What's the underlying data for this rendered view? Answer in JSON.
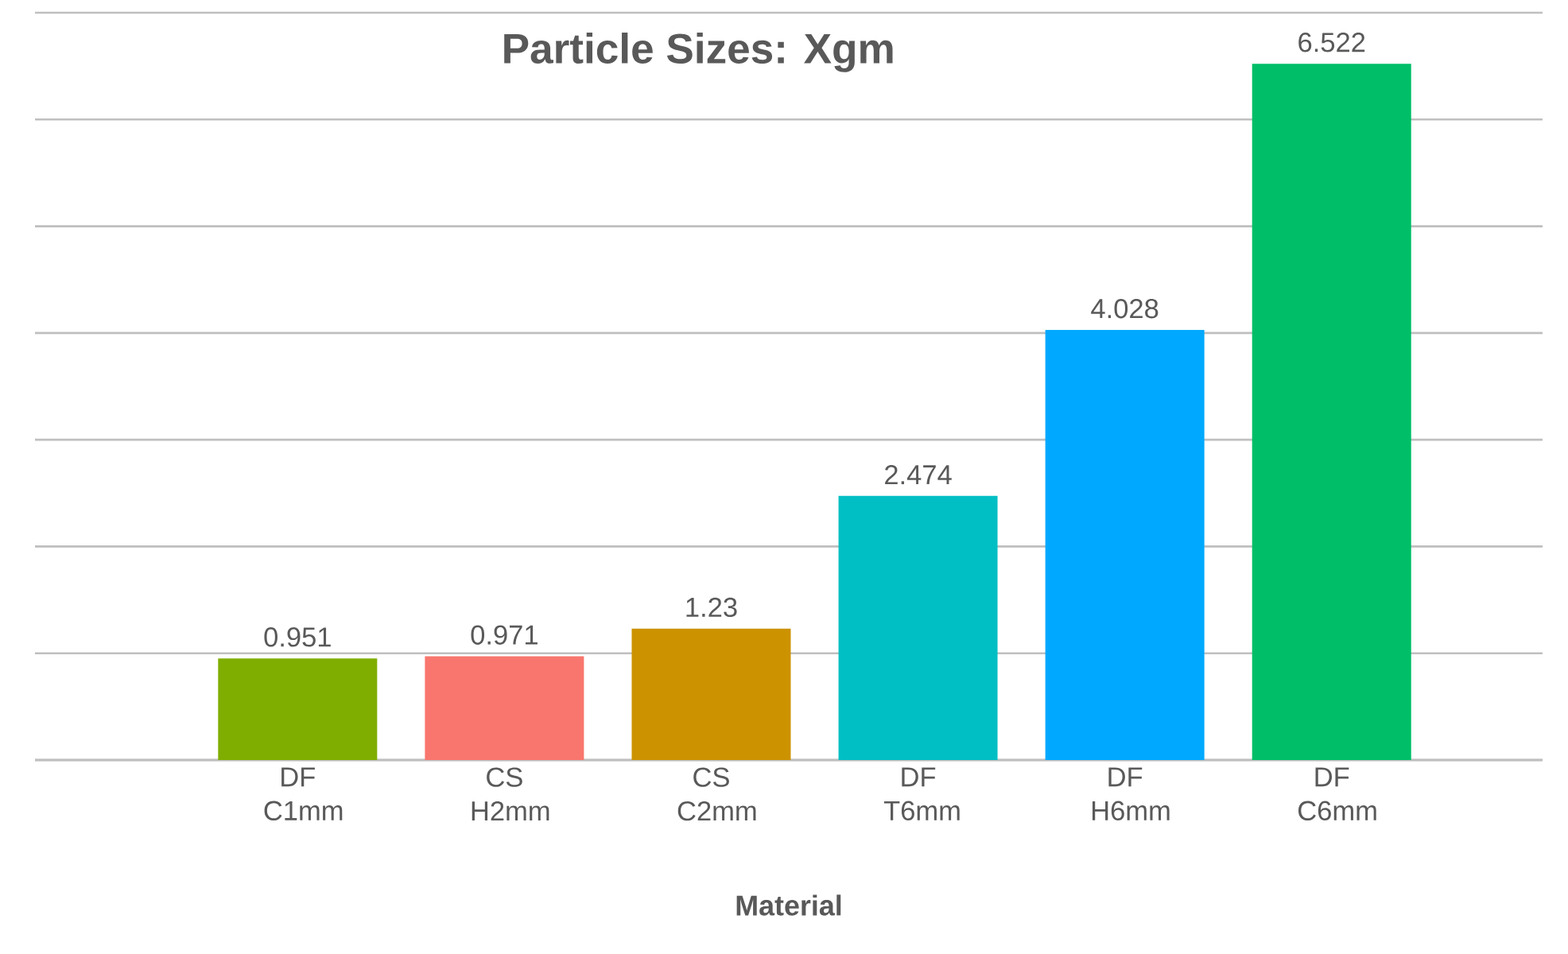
{
  "chart_data": {
    "type": "bar",
    "title": "Particle Sizes: Xgm",
    "xlabel": "Material",
    "categories": [
      "DF C1mm",
      "CS H2mm",
      "CS C2mm",
      "DF T6mm",
      "DF H6mm",
      "DF C6mm"
    ],
    "values": [
      0.951,
      0.971,
      1.23,
      2.474,
      4.028,
      6.522
    ],
    "colors": [
      "#7fae00",
      "#f8766d",
      "#cc9200",
      "#00bfc4",
      "#00a9ff",
      "#00be67"
    ],
    "ylim": [
      0,
      7
    ],
    "yticks": [
      {
        "value": 0,
        "label": null
      },
      {
        "value": 1,
        "label": null
      },
      {
        "value": 2,
        "label": null
      },
      {
        "value": 3,
        "label": null
      },
      {
        "value": 4,
        "label": null
      },
      {
        "value": 5,
        "label": null
      },
      {
        "value": 6,
        "label": null
      },
      {
        "value": 7,
        "label": null
      }
    ],
    "tick_labels": "x",
    "grid": "y",
    "data_labels": true
  }
}
